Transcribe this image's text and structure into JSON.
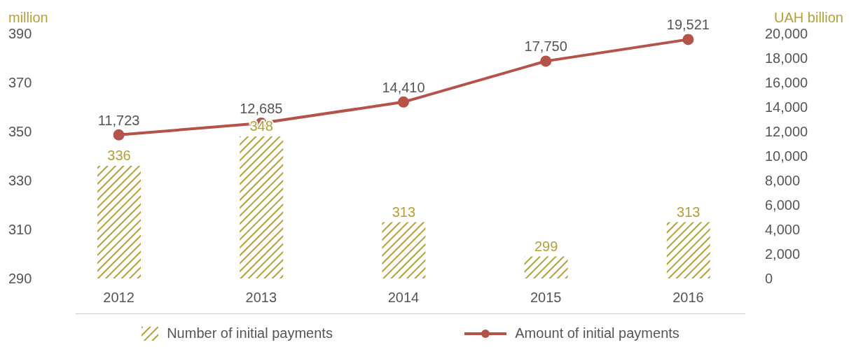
{
  "chart_data": {
    "type": "bar",
    "ylabel": "million",
    "y2label": "UAH billion",
    "categories": [
      "2012",
      "2013",
      "2014",
      "2015",
      "2016"
    ],
    "series": [
      {
        "name": "Number of initial payments",
        "color": "#b5a135",
        "values": [
          336,
          348,
          313,
          299,
          313
        ],
        "value_labels": [
          "336",
          "348",
          "313",
          "299",
          "313"
        ]
      },
      {
        "name": "Amount of initial payments",
        "type": "line",
        "axis": "y2",
        "color": "#b5534a",
        "values": [
          11723,
          12685,
          14410,
          17750,
          19521
        ],
        "value_labels": [
          "11,723",
          "12,685",
          "14,410",
          "17,750",
          "19,521"
        ]
      }
    ],
    "ylim": [
      290,
      390
    ],
    "yticks": [
      290,
      310,
      330,
      350,
      370,
      390
    ],
    "y2lim": [
      0,
      20000
    ],
    "y2ticks": [
      0,
      {
        "value": 2000,
        "label": "2,000"
      },
      {
        "value": 4000,
        "label": "4,000"
      },
      {
        "value": 6000,
        "label": "6,000"
      },
      {
        "value": 8000,
        "label": "8,000"
      },
      {
        "value": 10000,
        "label": "10,000"
      },
      {
        "value": 12000,
        "label": "12,000"
      },
      {
        "value": 14000,
        "label": "14,000"
      },
      {
        "value": 16000,
        "label": "16,000"
      },
      {
        "value": 18000,
        "label": "18,000"
      },
      {
        "value": 20000,
        "label": "20,000"
      }
    ],
    "legend": "bottom",
    "grid": false,
    "marker": "circle"
  }
}
